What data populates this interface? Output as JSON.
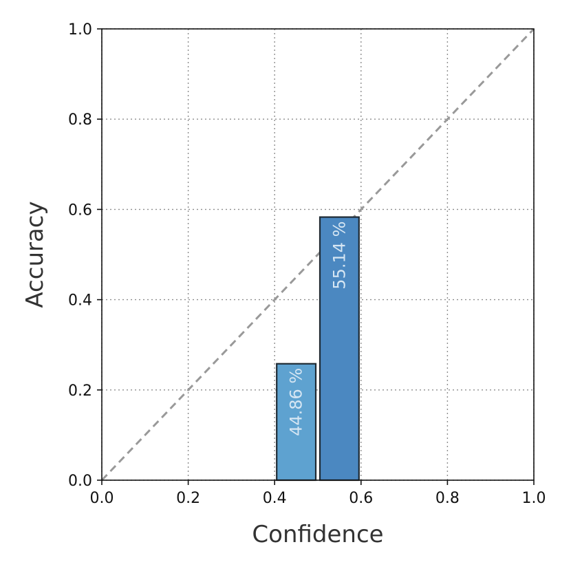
{
  "chart_data": {
    "type": "bar",
    "title": "",
    "xlabel": "Confidence",
    "ylabel": "Accuracy",
    "xlim": [
      0.0,
      1.0
    ],
    "ylim": [
      0.0,
      1.0
    ],
    "xticks": [
      "0.0",
      "0.2",
      "0.4",
      "0.6",
      "0.8",
      "1.0"
    ],
    "yticks": [
      "0.0",
      "0.2",
      "0.4",
      "0.6",
      "0.8",
      "1.0"
    ],
    "grid": true,
    "reference_line": "diagonal",
    "bars": [
      {
        "x_start": 0.4,
        "x_end": 0.5,
        "accuracy": 0.258,
        "label": "44.86 %",
        "color": "#5ea2d0"
      },
      {
        "x_start": 0.5,
        "x_end": 0.6,
        "accuracy": 0.583,
        "label": "55.14 %",
        "color": "#4b88c1"
      }
    ]
  }
}
